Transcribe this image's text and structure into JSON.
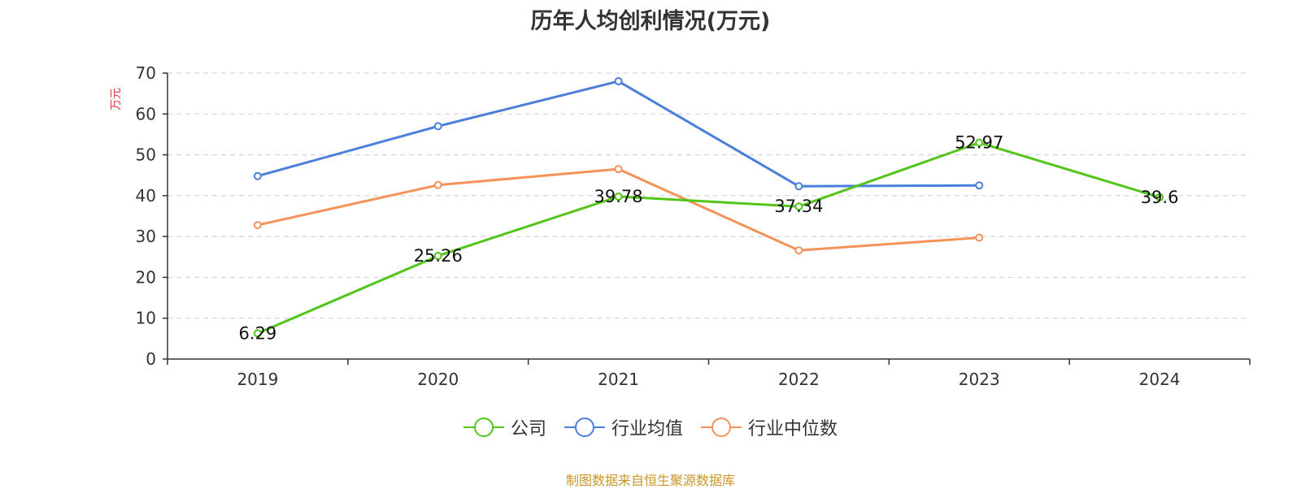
{
  "chart_data": {
    "type": "line",
    "title": "历年人均创利情况(万元)",
    "ylabel": "万元",
    "xlabel": "",
    "categories": [
      "2019",
      "2020",
      "2021",
      "2022",
      "2023",
      "2024"
    ],
    "ylim": [
      0,
      70
    ],
    "yticks": [
      "0",
      "10",
      "20",
      "30",
      "40",
      "50",
      "60",
      "70"
    ],
    "grid": true,
    "legend_position": "bottom",
    "series": [
      {
        "name": "公司",
        "color": "#52c41a",
        "values": [
          6.29,
          25.26,
          39.78,
          37.34,
          52.97,
          39.6
        ],
        "labels": [
          "6.29",
          "25.26",
          "39.78",
          "37.34",
          "52.97",
          "39.6"
        ]
      },
      {
        "name": "行业均值",
        "color": "#4a7fdc",
        "values": [
          44.8,
          57.0,
          68.0,
          42.3,
          42.5,
          null
        ]
      },
      {
        "name": "行业中位数",
        "color": "#f5925a",
        "values": [
          32.8,
          42.6,
          46.5,
          26.6,
          29.7,
          null
        ]
      }
    ]
  },
  "footer": {
    "text": "制图数据来自恒生聚源数据库",
    "color": "#c8962a"
  },
  "colors": {
    "axis": "#333333",
    "grid": "#cccccc",
    "ylabel": "#e0393e"
  }
}
